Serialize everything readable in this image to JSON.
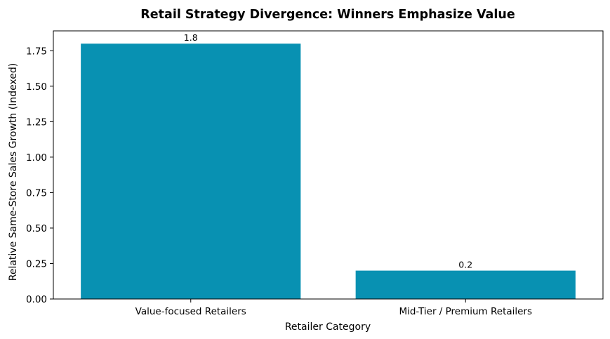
{
  "chart_data": {
    "type": "bar",
    "title": "Retail Strategy Divergence: Winners Emphasize Value",
    "xlabel": "Retailer Category",
    "ylabel": "Relative Same-Store Sales Growth (Indexed)",
    "categories": [
      "Value-focused Retailers",
      "Mid-Tier / Premium Retailers"
    ],
    "values": [
      1.8,
      0.2
    ],
    "value_labels": [
      "1.8",
      "0.2"
    ],
    "ylim": [
      0,
      1.89
    ],
    "yticks": [
      0.0,
      0.25,
      0.5,
      0.75,
      1.0,
      1.25,
      1.5,
      1.75
    ],
    "ytick_labels": [
      "0.00",
      "0.25",
      "0.50",
      "0.75",
      "1.00",
      "1.25",
      "1.50",
      "1.75"
    ],
    "grid": false,
    "legend": "none",
    "bar_color": "#0891b2"
  }
}
